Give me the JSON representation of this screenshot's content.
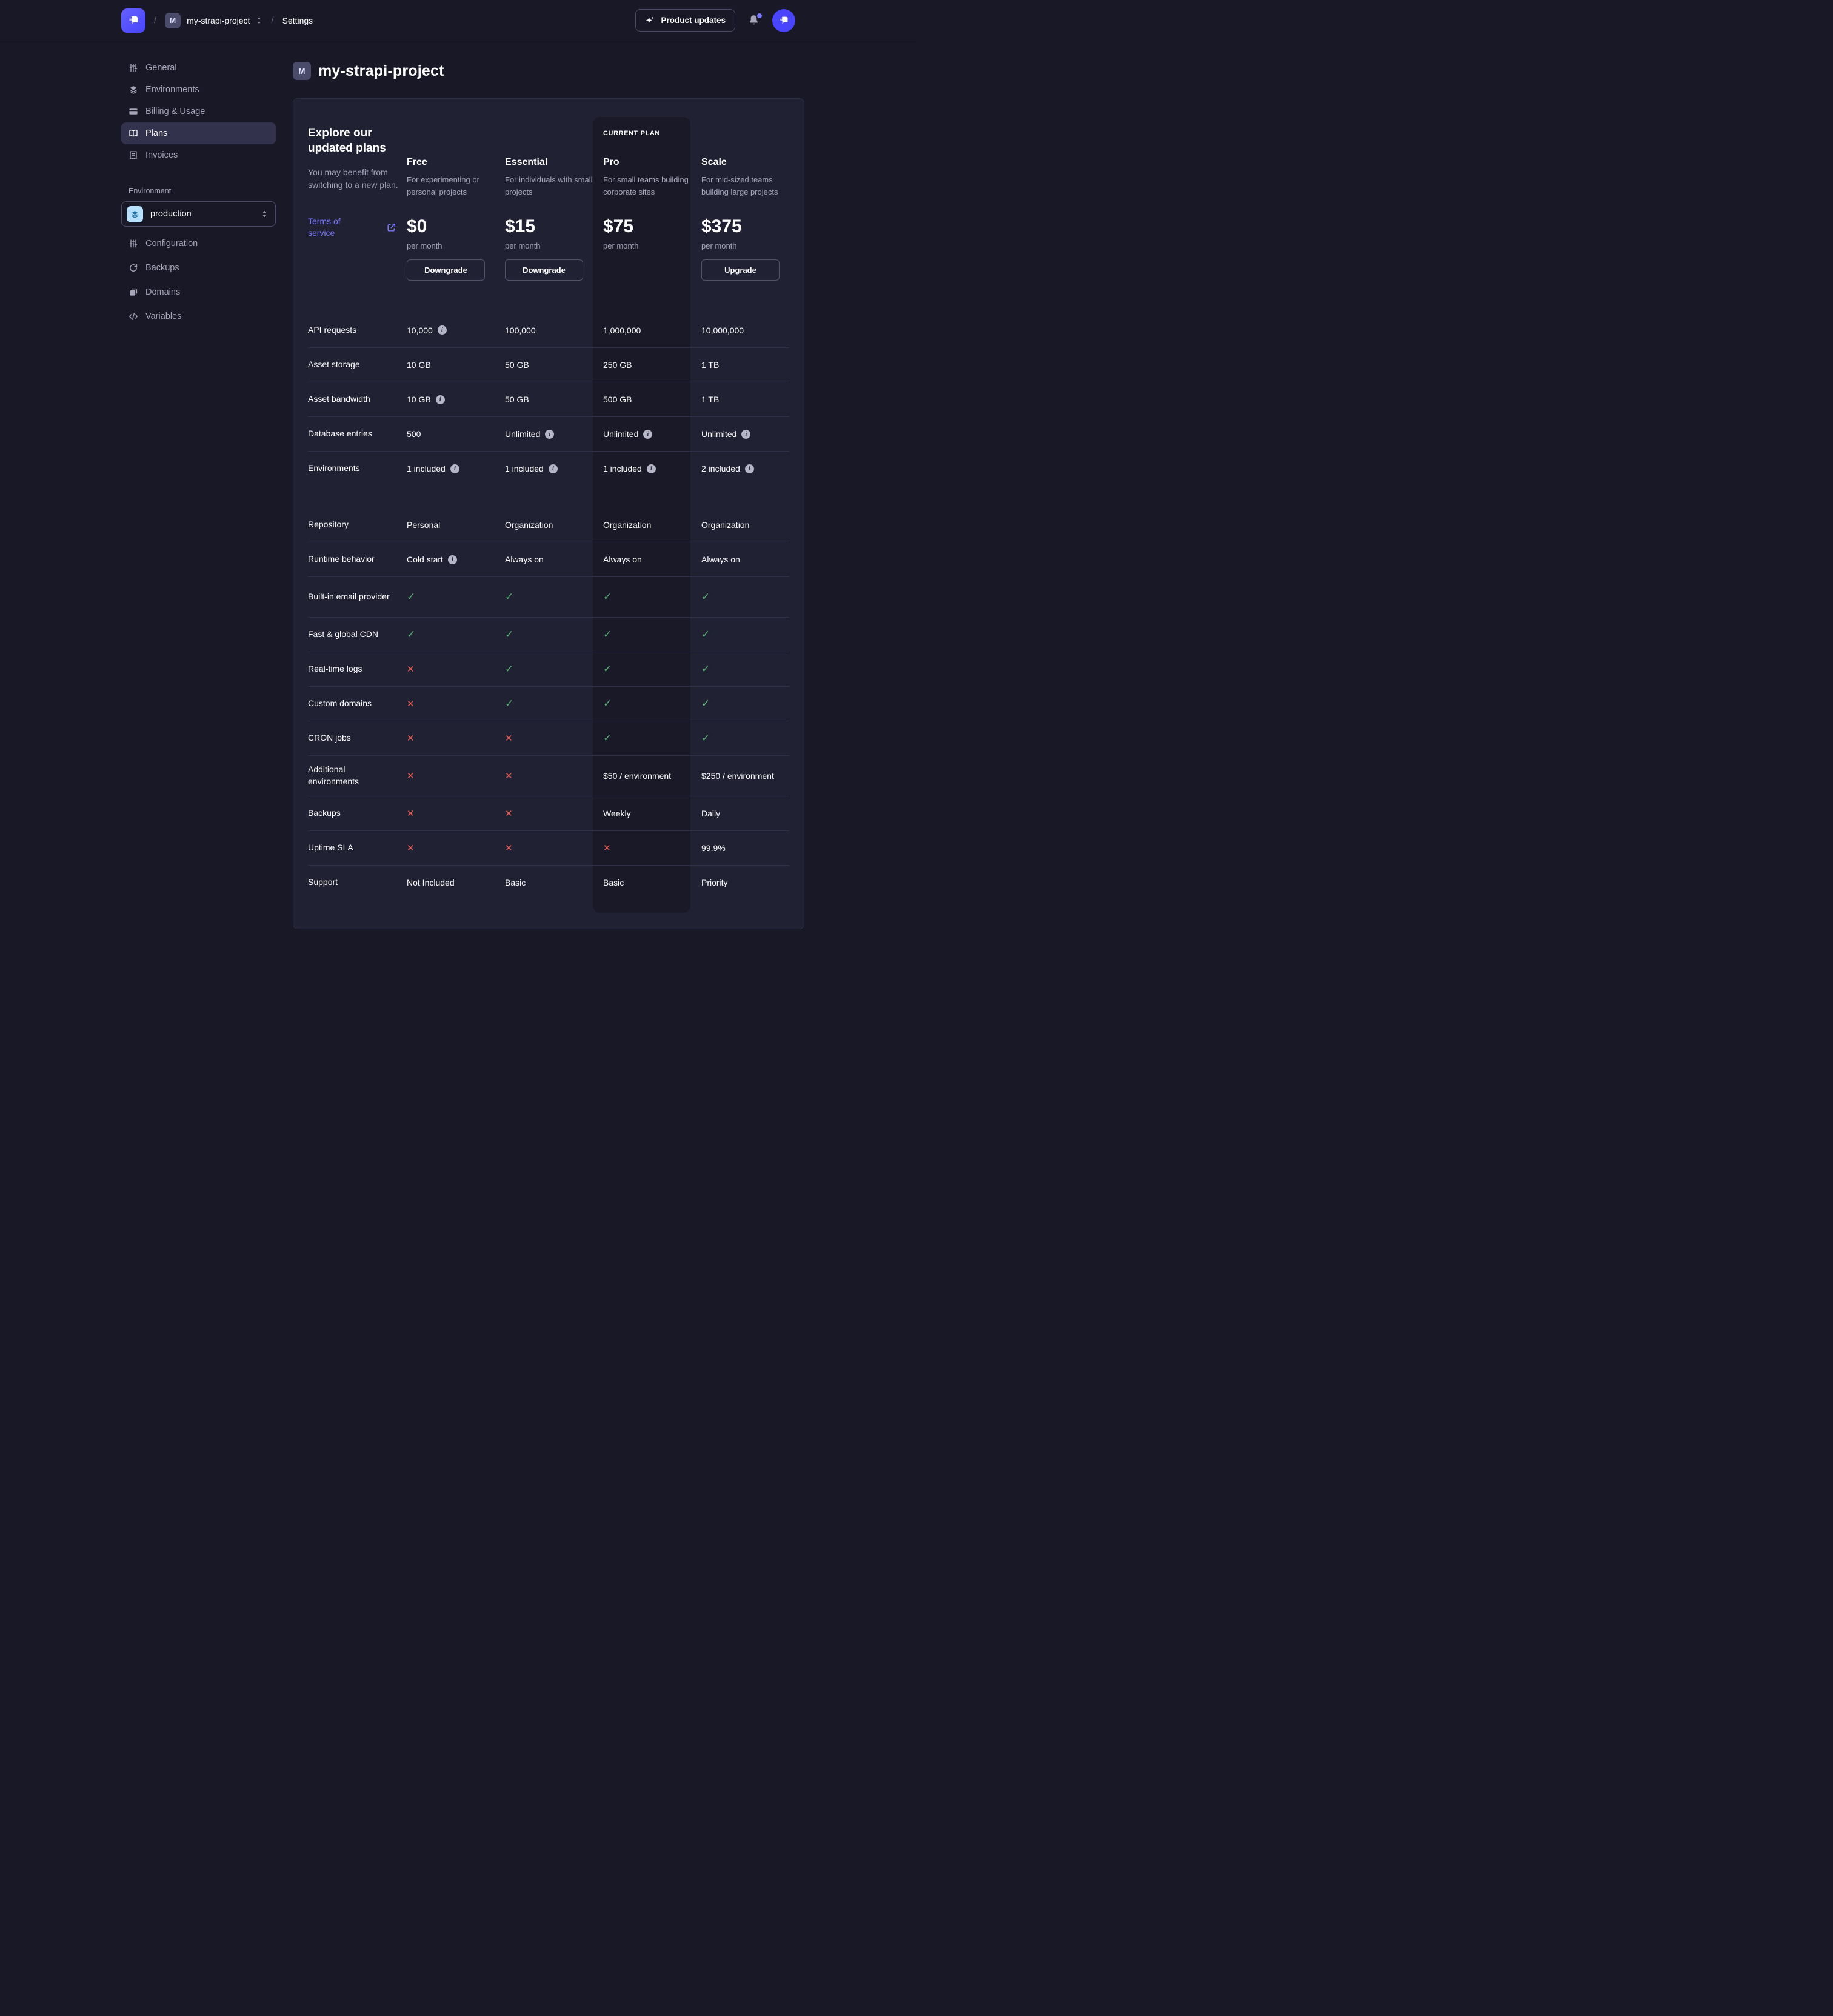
{
  "navbar": {
    "slash1": "/",
    "project_chip": "M",
    "project_name": "my-strapi-project",
    "slash2": "/",
    "settings_label": "Settings",
    "product_updates_label": "Product updates"
  },
  "sidebar": {
    "items": [
      {
        "label": "General",
        "icon": "sliders-icon",
        "active": false
      },
      {
        "label": "Environments",
        "icon": "layers-icon",
        "active": false
      },
      {
        "label": "Billing & Usage",
        "icon": "credit-card-icon",
        "active": false
      },
      {
        "label": "Plans",
        "icon": "map-icon",
        "active": true
      },
      {
        "label": "Invoices",
        "icon": "receipt-icon",
        "active": false
      }
    ],
    "environment_section_label": "Environment",
    "environment_selected": "production",
    "environment_items": [
      {
        "label": "Configuration",
        "icon": "sliders-icon"
      },
      {
        "label": "Backups",
        "icon": "refresh-icon"
      },
      {
        "label": "Domains",
        "icon": "copy-icon"
      },
      {
        "label": "Variables",
        "icon": "code-icon"
      }
    ]
  },
  "header": {
    "avatar": "M",
    "title": "my-strapi-project"
  },
  "plans": {
    "intro": {
      "title": "Explore our updated plans",
      "subtitle": "You may benefit from switching to a new plan.",
      "link_label": "Terms of service"
    },
    "current_plan_label": "CURRENT PLAN",
    "columns": [
      {
        "name": "Free",
        "description": "For experimenting or personal projects",
        "price": "$0",
        "period": "per month",
        "button": "Downgrade",
        "current": false
      },
      {
        "name": "Essential",
        "description": "For individuals with small projects",
        "price": "$15",
        "period": "per month",
        "button": "Downgrade",
        "current": false
      },
      {
        "name": "Pro",
        "description": "For small teams building corporate sites",
        "price": "$75",
        "period": "per month",
        "button": null,
        "current": true
      },
      {
        "name": "Scale",
        "description": "For mid-sized teams building large projects",
        "price": "$375",
        "period": "per month",
        "button": "Upgrade",
        "current": false
      }
    ],
    "rows": [
      {
        "label": "API requests",
        "sep": false,
        "gap": false,
        "tall": false,
        "cells": [
          {
            "v": "10,000",
            "info": true
          },
          {
            "v": "100,000"
          },
          {
            "v": "1,000,000"
          },
          {
            "v": "10,000,000"
          }
        ]
      },
      {
        "label": "Asset storage",
        "sep": true,
        "gap": false,
        "tall": false,
        "cells": [
          {
            "v": "10 GB"
          },
          {
            "v": "50 GB"
          },
          {
            "v": "250 GB"
          },
          {
            "v": "1 TB"
          }
        ]
      },
      {
        "label": "Asset bandwidth",
        "sep": true,
        "gap": false,
        "tall": false,
        "cells": [
          {
            "v": "10 GB",
            "info": true
          },
          {
            "v": "50 GB"
          },
          {
            "v": "500 GB"
          },
          {
            "v": "1 TB"
          }
        ]
      },
      {
        "label": "Database entries",
        "sep": true,
        "gap": false,
        "tall": false,
        "cells": [
          {
            "v": "500"
          },
          {
            "v": "Unlimited",
            "info": true
          },
          {
            "v": "Unlimited",
            "info": true
          },
          {
            "v": "Unlimited",
            "info": true
          }
        ]
      },
      {
        "label": "Environments",
        "sep": true,
        "gap": false,
        "tall": false,
        "cells": [
          {
            "v": "1 included",
            "info": true
          },
          {
            "v": "1 included",
            "info": true
          },
          {
            "v": "1 included",
            "info": true
          },
          {
            "v": "2 included",
            "info": true
          }
        ]
      },
      {
        "label": "Repository",
        "sep": false,
        "gap": true,
        "tall": false,
        "cells": [
          {
            "v": "Personal"
          },
          {
            "v": "Organization"
          },
          {
            "v": "Organization"
          },
          {
            "v": "Organization"
          }
        ]
      },
      {
        "label": "Runtime behavior",
        "sep": true,
        "gap": false,
        "tall": false,
        "cells": [
          {
            "v": "Cold start",
            "info": true
          },
          {
            "v": "Always on"
          },
          {
            "v": "Always on"
          },
          {
            "v": "Always on"
          }
        ]
      },
      {
        "label": "Built-in email provider",
        "sep": true,
        "gap": false,
        "tall": true,
        "cells": [
          {
            "check": true
          },
          {
            "check": true
          },
          {
            "check": true
          },
          {
            "check": true
          }
        ]
      },
      {
        "label": "Fast & global CDN",
        "sep": true,
        "gap": false,
        "tall": false,
        "cells": [
          {
            "check": true
          },
          {
            "check": true
          },
          {
            "check": true
          },
          {
            "check": true
          }
        ]
      },
      {
        "label": "Real-time logs",
        "sep": true,
        "gap": false,
        "tall": false,
        "cells": [
          {
            "cross": true
          },
          {
            "check": true
          },
          {
            "check": true
          },
          {
            "check": true
          }
        ]
      },
      {
        "label": "Custom domains",
        "sep": true,
        "gap": false,
        "tall": false,
        "cells": [
          {
            "cross": true
          },
          {
            "check": true
          },
          {
            "check": true
          },
          {
            "check": true
          }
        ]
      },
      {
        "label": "CRON jobs",
        "sep": true,
        "gap": false,
        "tall": false,
        "cells": [
          {
            "cross": true
          },
          {
            "cross": true
          },
          {
            "check": true
          },
          {
            "check": true
          }
        ]
      },
      {
        "label": "Additional environments",
        "sep": true,
        "gap": false,
        "tall": true,
        "cells": [
          {
            "cross": true
          },
          {
            "cross": true
          },
          {
            "v": "$50 / environment"
          },
          {
            "v": "$250 / environment"
          }
        ]
      },
      {
        "label": "Backups",
        "sep": true,
        "gap": false,
        "tall": false,
        "cells": [
          {
            "cross": true
          },
          {
            "cross": true
          },
          {
            "v": "Weekly"
          },
          {
            "v": "Daily"
          }
        ]
      },
      {
        "label": "Uptime SLA",
        "sep": true,
        "gap": false,
        "tall": false,
        "cells": [
          {
            "cross": true
          },
          {
            "cross": true
          },
          {
            "cross": true
          },
          {
            "v": "99.9%"
          }
        ]
      },
      {
        "label": "Support",
        "sep": true,
        "gap": false,
        "tall": false,
        "cells": [
          {
            "v": "Not Included"
          },
          {
            "v": "Basic"
          },
          {
            "v": "Basic"
          },
          {
            "v": "Priority"
          }
        ]
      }
    ]
  },
  "colors": {
    "background": "#181826",
    "surface": "#212134",
    "current_plan_column": "#191927",
    "accent": "#4945ff",
    "link": "#7b79ff",
    "success_check": "#5cb176",
    "danger_cross": "#ee5e52",
    "env_icon_bg": "#b8e1ff",
    "env_icon": "#1d6fa8",
    "text_secondary": "#a5a5ba"
  }
}
